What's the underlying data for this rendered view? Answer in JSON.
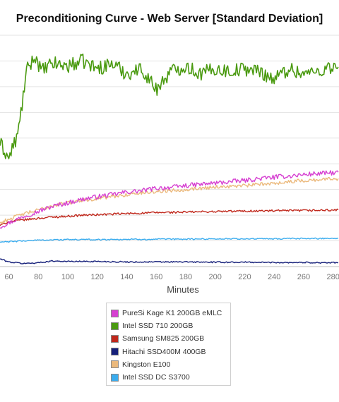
{
  "chart_data": {
    "type": "line",
    "title": "Preconditioning Curve - Web Server [Standard Deviation]",
    "xlabel": "Minutes",
    "ylabel": "",
    "x_ticks": [
      60,
      80,
      100,
      120,
      140,
      160,
      180,
      200,
      220,
      240,
      260,
      280
    ],
    "xlim": [
      54,
      284
    ],
    "ylim": [
      0,
      9
    ],
    "grid": "horizontal",
    "legend_position": "bottom",
    "series": [
      {
        "name": "PureSi Kage K1 200GB eMLC",
        "color": "#d63fd1",
        "x": [
          54,
          60,
          70,
          80,
          90,
          100,
          110,
          120,
          130,
          140,
          150,
          160,
          170,
          180,
          190,
          200,
          210,
          220,
          230,
          240,
          250,
          260,
          270,
          280,
          284
        ],
        "y": [
          1.55,
          1.7,
          1.95,
          2.15,
          2.35,
          2.48,
          2.62,
          2.72,
          2.8,
          2.9,
          2.95,
          3.05,
          3.08,
          3.15,
          3.2,
          3.25,
          3.3,
          3.35,
          3.42,
          3.48,
          3.52,
          3.58,
          3.62,
          3.65,
          3.65
        ],
        "noise": 0.09
      },
      {
        "name": "Intel SSD 710 200GB",
        "color": "#4a9a10",
        "x": [
          54,
          57,
          60,
          63,
          66,
          69,
          72,
          75,
          78,
          82,
          90,
          100,
          110,
          120,
          130,
          140,
          150,
          160,
          170,
          180,
          190,
          200,
          210,
          220,
          230,
          240,
          250,
          260,
          270,
          280,
          284
        ],
        "y": [
          4.8,
          4.5,
          4.2,
          4.7,
          5.1,
          6.3,
          7.6,
          7.9,
          8.2,
          7.6,
          7.9,
          7.8,
          8.0,
          7.7,
          7.9,
          7.5,
          7.7,
          6.9,
          7.6,
          7.8,
          7.5,
          7.7,
          7.6,
          7.7,
          7.6,
          7.3,
          7.7,
          7.5,
          7.6,
          7.8,
          7.7
        ],
        "noise": 0.28
      },
      {
        "name": "Samsung SM825 200GB",
        "color": "#c0281c",
        "x": [
          54,
          60,
          70,
          80,
          90,
          100,
          110,
          120,
          130,
          140,
          150,
          160,
          180,
          200,
          220,
          240,
          260,
          280,
          284
        ],
        "y": [
          1.6,
          1.75,
          1.82,
          1.88,
          1.93,
          1.96,
          2.0,
          2.02,
          2.04,
          2.06,
          2.08,
          2.1,
          2.12,
          2.14,
          2.16,
          2.17,
          2.18,
          2.2,
          2.2
        ],
        "noise": 0.04
      },
      {
        "name": "Hitachi SSD400M 400GB",
        "color": "#16207a",
        "x": [
          54,
          60,
          70,
          80,
          90,
          100,
          120,
          140,
          160,
          180,
          200,
          220,
          240,
          260,
          280,
          284
        ],
        "y": [
          0.3,
          0.18,
          0.12,
          0.15,
          0.22,
          0.2,
          0.2,
          0.18,
          0.18,
          0.18,
          0.17,
          0.17,
          0.16,
          0.16,
          0.15,
          0.15
        ],
        "noise": 0.025
      },
      {
        "name": "Kingston E100",
        "color": "#ebb97c",
        "x": [
          54,
          60,
          70,
          80,
          90,
          100,
          110,
          120,
          130,
          140,
          150,
          160,
          170,
          180,
          190,
          200,
          210,
          220,
          230,
          240,
          250,
          260,
          270,
          280,
          284
        ],
        "y": [
          1.7,
          1.85,
          2.05,
          2.2,
          2.38,
          2.48,
          2.58,
          2.65,
          2.72,
          2.8,
          2.86,
          2.92,
          2.96,
          3.0,
          3.05,
          3.1,
          3.12,
          3.15,
          3.2,
          3.25,
          3.3,
          3.35,
          3.38,
          3.42,
          3.42
        ],
        "noise": 0.07
      },
      {
        "name": "Intel SSD DC S3700",
        "color": "#3aacee",
        "x": [
          54,
          60,
          70,
          80,
          100,
          120,
          140,
          160,
          180,
          200,
          220,
          240,
          260,
          280,
          284
        ],
        "y": [
          0.95,
          0.97,
          1.0,
          1.03,
          1.05,
          1.05,
          1.06,
          1.06,
          1.07,
          1.08,
          1.08,
          1.08,
          1.09,
          1.1,
          1.1
        ],
        "noise": 0.025
      }
    ]
  }
}
